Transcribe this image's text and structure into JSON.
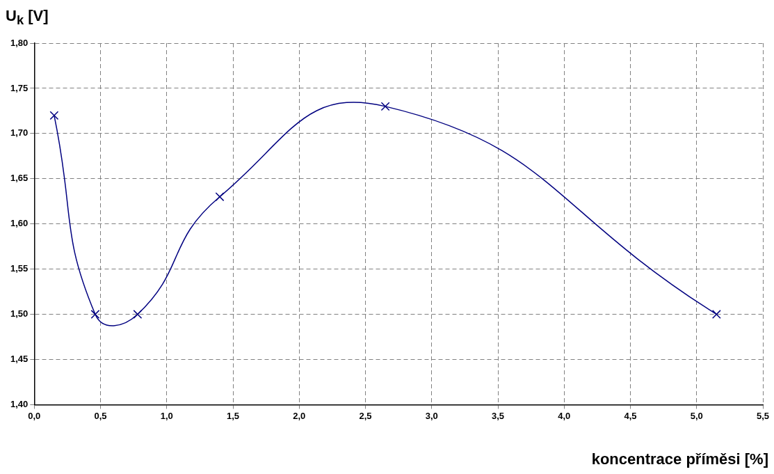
{
  "chart_data": {
    "type": "line",
    "xlabel": "koncentrace příměsi [%]",
    "ylabel": "U$_{k}$ [V]",
    "x": [
      0.15,
      0.46,
      0.78,
      1.4,
      2.65,
      5.15
    ],
    "series": [
      {
        "color": "#000080",
        "values": [
          1.72,
          1.5,
          1.5,
          1.63,
          1.73,
          1.5
        ]
      }
    ],
    "marker": "cross",
    "grid": true,
    "legend": false,
    "xlim": [
      0,
      5.5
    ],
    "xticks": [
      {
        "value": 0,
        "label": "0,0"
      },
      {
        "value": 0.5,
        "label": "0,5"
      },
      {
        "value": 1,
        "label": "1,0"
      },
      {
        "value": 1.5,
        "label": "1,5"
      },
      {
        "value": 2,
        "label": "2,0"
      },
      {
        "value": 2.5,
        "label": "2,5"
      },
      {
        "value": 3,
        "label": "3,0"
      },
      {
        "value": 3.5,
        "label": "3,5"
      },
      {
        "value": 4,
        "label": "4,0"
      },
      {
        "value": 4.5,
        "label": "4,5"
      },
      {
        "value": 5,
        "label": "5,0"
      },
      {
        "value": 5.5,
        "label": "5,5"
      }
    ],
    "ylim": [
      1.4,
      1.8
    ],
    "yticks": [
      {
        "value": 1.4,
        "label": "1,40"
      },
      {
        "value": 1.45,
        "label": "1,45"
      },
      {
        "value": 1.5,
        "label": "1,50"
      },
      {
        "value": 1.55,
        "label": "1,55"
      },
      {
        "value": 1.6,
        "label": "1,60"
      },
      {
        "value": 1.65,
        "label": "1,65"
      },
      {
        "value": 1.7,
        "label": "1,70"
      },
      {
        "value": 1.75,
        "label": "1,75"
      },
      {
        "value": 1.8,
        "label": "1,80"
      }
    ]
  }
}
